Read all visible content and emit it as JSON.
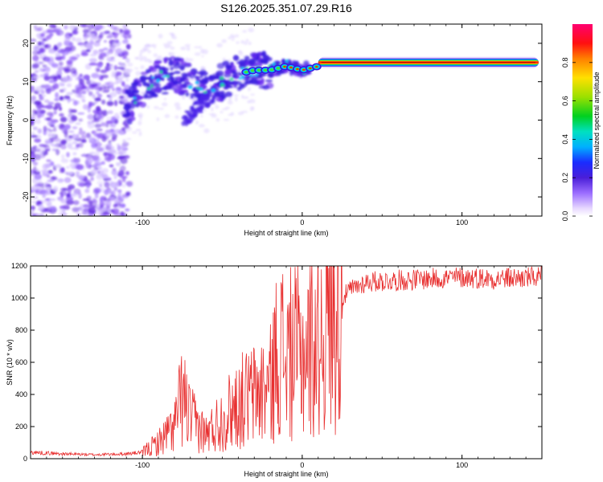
{
  "title": "S126.2025.351.07.29.R16",
  "chart_data": [
    {
      "type": "heatmap",
      "name": "spectrogram",
      "xlabel": "Height of straight line (km)",
      "ylabel": "Frequency (Hz)",
      "xlim": [
        -170,
        150
      ],
      "ylim": [
        -25,
        25
      ],
      "xticks": [
        -100,
        0,
        100
      ],
      "yticks": [
        -20,
        -10,
        0,
        10,
        20
      ],
      "colorbar": {
        "label": "Normalized spectral amplitude",
        "range": [
          0,
          1
        ],
        "ticks": [
          "0.0",
          "0.2",
          "0.4",
          "0.6",
          "0.8"
        ]
      },
      "ridge": {
        "description": "dominant frequency track",
        "x": [
          -110,
          -100,
          -90,
          -80,
          -70,
          -60,
          -50,
          -40,
          -30,
          -20,
          -10,
          0,
          10,
          20,
          40,
          60,
          100,
          150
        ],
        "frequency": [
          3,
          8,
          11,
          12,
          10,
          8,
          10,
          12,
          13,
          13,
          14,
          13,
          14,
          14.5,
          15,
          15,
          15,
          15
        ]
      }
    },
    {
      "type": "line",
      "name": "snr",
      "xlabel": "Height of straight line (km)",
      "ylabel": "SNR (10 * v/v)",
      "xlim": [
        -170,
        150
      ],
      "ylim": [
        0,
        1200
      ],
      "xticks": [
        -100,
        0,
        100
      ],
      "yticks": [
        0,
        200,
        400,
        600,
        800,
        1000,
        1200
      ],
      "series": [
        {
          "name": "SNR",
          "color": "#e83030",
          "x": [
            -170,
            -150,
            -130,
            -110,
            -100,
            -90,
            -80,
            -75,
            -70,
            -60,
            -50,
            -40,
            -30,
            -20,
            -15,
            -10,
            0,
            10,
            20,
            30,
            40,
            60,
            80,
            100,
            120,
            150
          ],
          "y": [
            40,
            30,
            25,
            30,
            40,
            100,
            200,
            400,
            250,
            150,
            250,
            350,
            400,
            450,
            700,
            650,
            650,
            750,
            950,
            1050,
            1100,
            1110,
            1120,
            1130,
            1120,
            1130
          ]
        }
      ]
    }
  ]
}
